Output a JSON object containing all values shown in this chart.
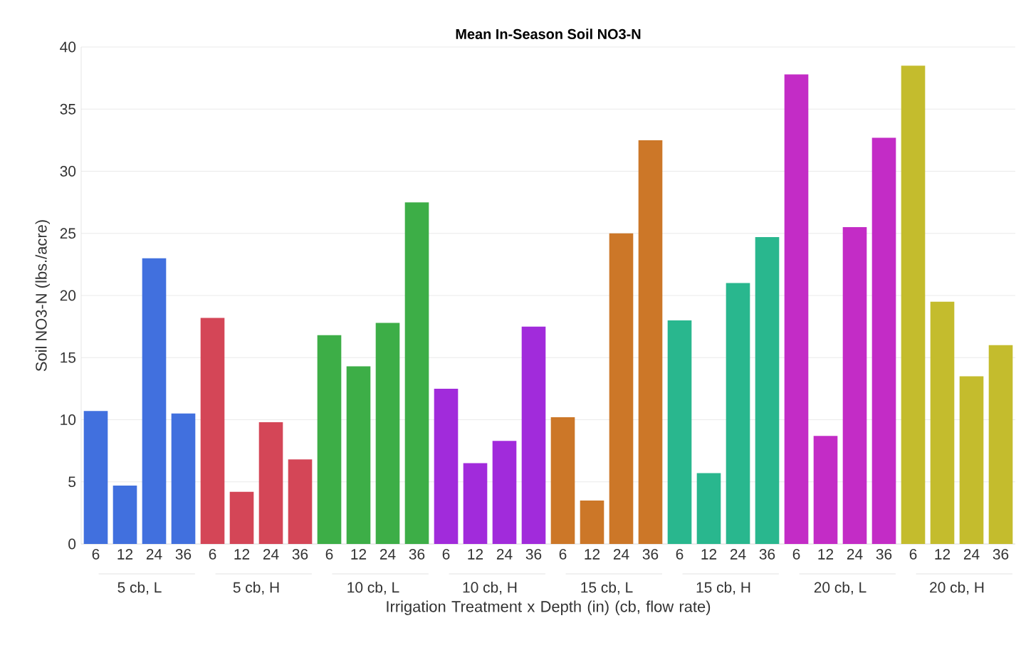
{
  "chart_data": {
    "type": "bar",
    "title": "Mean In-Season Soil NO3-N",
    "xlabel": "Irrigation Treatment x Depth (in) (cb, flow rate)",
    "ylabel": "Soil NO3-N (lbs./acre)",
    "categories": [
      "6",
      "12",
      "24",
      "36",
      "6",
      "12",
      "24",
      "36",
      "6",
      "12",
      "24",
      "36",
      "6",
      "12",
      "24",
      "36",
      "6",
      "12",
      "24",
      "36",
      "6",
      "12",
      "24",
      "36",
      "6",
      "12",
      "24",
      "36",
      "6",
      "12",
      "24",
      "36"
    ],
    "values": [
      10.7,
      4.7,
      23.0,
      10.5,
      18.2,
      4.2,
      9.8,
      6.8,
      16.8,
      14.3,
      17.8,
      27.5,
      12.5,
      6.5,
      8.3,
      17.5,
      10.2,
      3.5,
      25.0,
      32.5,
      18.0,
      5.7,
      21.0,
      24.7,
      37.8,
      8.7,
      25.5,
      32.7,
      38.5,
      19.5,
      13.5,
      16.0
    ],
    "colors": [
      "#4170de",
      "#4170de",
      "#4170de",
      "#4170de",
      "#d44657",
      "#d44657",
      "#d44657",
      "#d44657",
      "#3dae47",
      "#3dae47",
      "#3dae47",
      "#3dae47",
      "#a12bdb",
      "#a12bdb",
      "#a12bdb",
      "#a12bdb",
      "#cc7728",
      "#cc7728",
      "#cc7728",
      "#cc7728",
      "#29b78e",
      "#29b78e",
      "#29b78e",
      "#29b78e",
      "#c32cc6",
      "#c32cc6",
      "#c32cc6",
      "#c32cc6",
      "#c4bc2d",
      "#c4bc2d",
      "#c4bc2d",
      "#c4bc2d"
    ],
    "annotations": [
      "5 cb, L",
      "5 cb, H",
      "10 cb, L",
      "10 cb, H",
      "15 cb, L",
      "15 cb, H",
      "20 cb, L",
      "20 cb, H"
    ],
    "ylim": [
      0,
      40
    ],
    "yticks": [
      0,
      5,
      10,
      15,
      20,
      25,
      30,
      35,
      40
    ],
    "grid": "y"
  }
}
